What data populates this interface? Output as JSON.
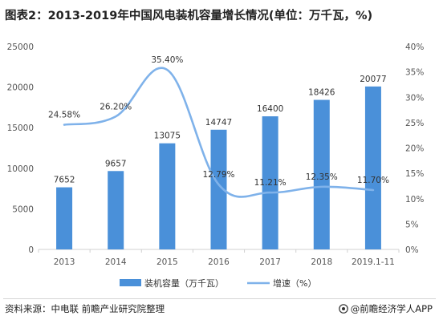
{
  "title": "图表2：2013-2019年中国风电装机容量增长情况(单位：万千瓦，%)",
  "source": "资料来源：中电联 前瞻产业研究院整理",
  "brand": "@前瞻经济学人APP",
  "colors": {
    "bar": "#4a90d9",
    "line": "#7fb2ea",
    "axis": "#d0d0d0"
  },
  "chart_data": {
    "type": "bar",
    "title": "图表2：2013-2019年中国风电装机容量增长情况(单位：万千瓦，%)",
    "categories": [
      "2013",
      "2014",
      "2015",
      "2016",
      "2017",
      "2018",
      "2019.1-11"
    ],
    "series": [
      {
        "name": "装机容量（万千瓦）",
        "type": "bar",
        "axis": "left",
        "values": [
          7652,
          9657,
          13075,
          14747,
          16400,
          18426,
          20077
        ]
      },
      {
        "name": "增速（%）",
        "type": "line",
        "axis": "right",
        "values": [
          24.58,
          26.2,
          35.4,
          12.79,
          11.21,
          12.35,
          11.7
        ]
      }
    ],
    "bar_labels": [
      "7652",
      "9657",
      "13075",
      "14747",
      "16400",
      "18426",
      "20077"
    ],
    "line_labels": [
      "24.58%",
      "26.20%",
      "35.40%",
      "12.79%",
      "11.21%",
      "12.35%",
      "11.70%"
    ],
    "ylim_left": [
      0,
      25000
    ],
    "yticks_left": [
      "0",
      "5000",
      "10000",
      "15000",
      "20000",
      "25000"
    ],
    "ylim_right": [
      0,
      40
    ],
    "yticks_right": [
      "0%",
      "5%",
      "10%",
      "15%",
      "20%",
      "25%",
      "30%",
      "35%",
      "40%"
    ],
    "legend_position": "bottom",
    "grid": false
  }
}
